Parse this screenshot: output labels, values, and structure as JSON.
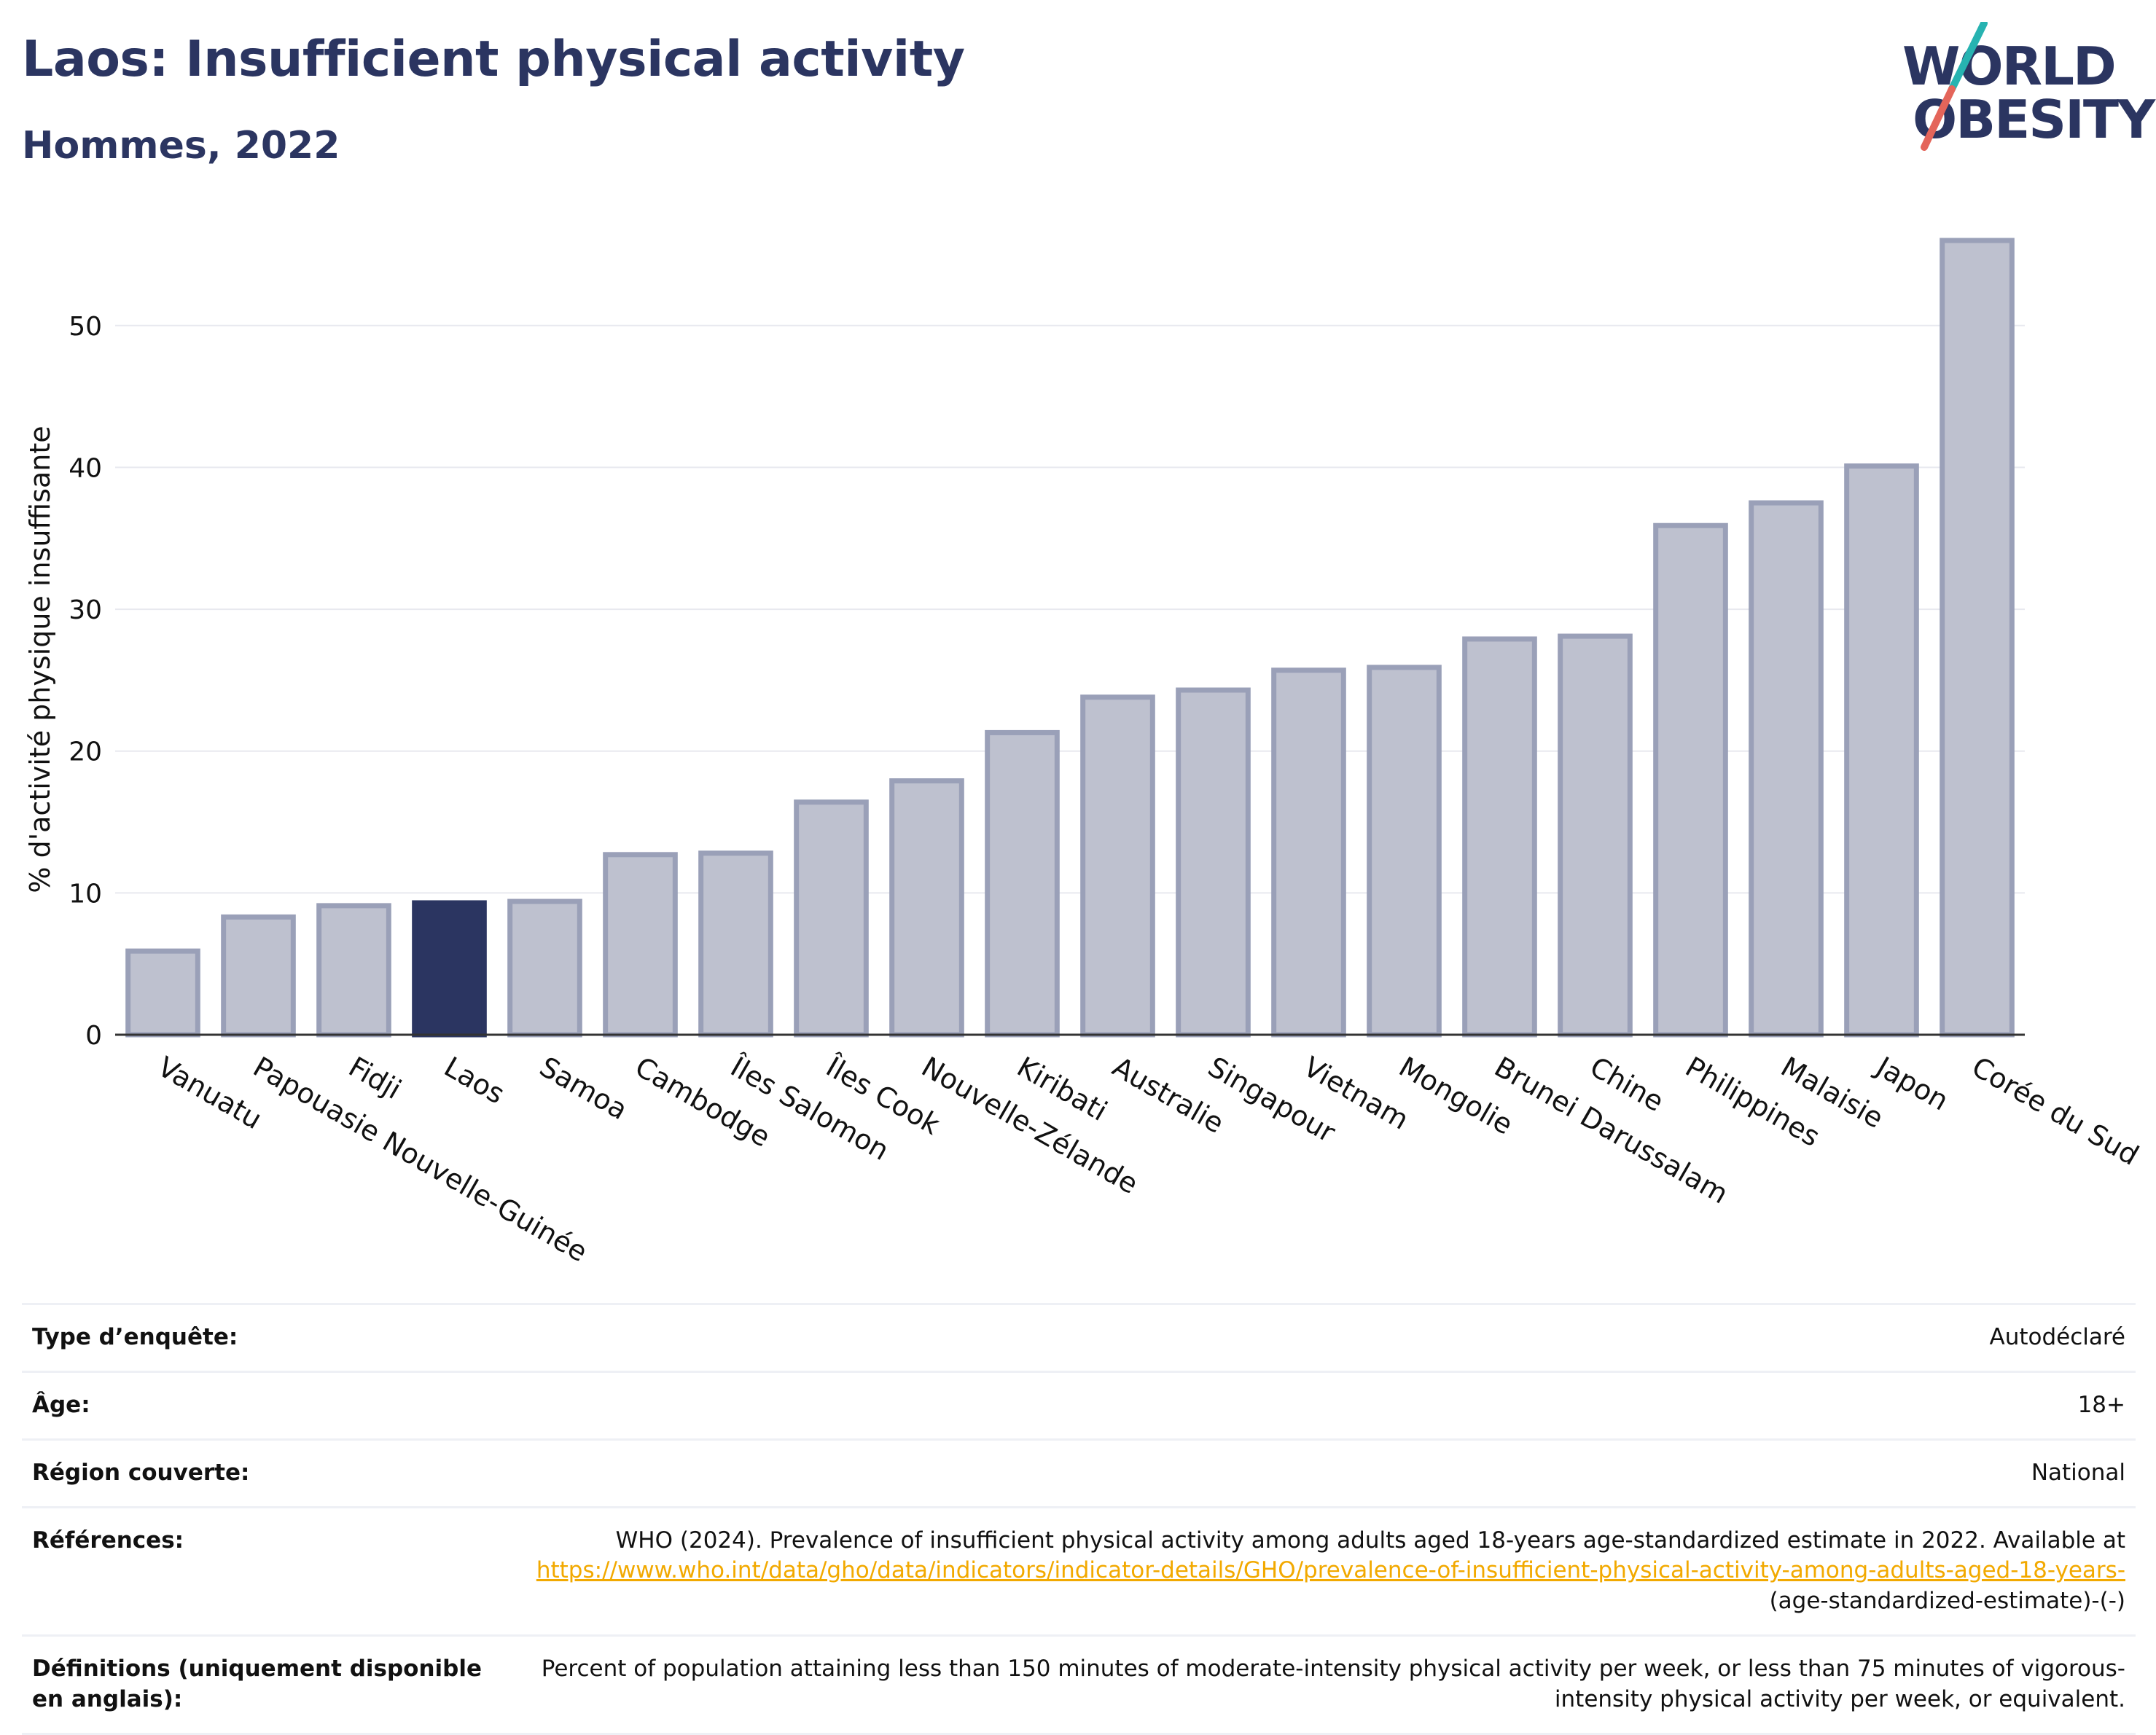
{
  "title": "Laos: Insufficient physical activity",
  "subtitle": "Hommes, 2022",
  "logo": {
    "line1": "WORLD",
    "line2": "OBESITY"
  },
  "colors": {
    "title": "#2b3561",
    "highlight_bar": "#2b3561",
    "bar_fill": "#bec1cf",
    "bar_stroke": "#9aa0b8",
    "link": "#f2a900",
    "logo_slash_teal": "#27b3b1",
    "logo_slash_red": "#e4655a"
  },
  "chart_data": {
    "type": "bar",
    "ylabel": "% d'activité physique insuffisante",
    "xlabel": "",
    "ylim": [
      0,
      56
    ],
    "yticks": [
      0,
      10,
      20,
      30,
      40,
      50
    ],
    "grid": true,
    "highlight": "Laos",
    "categories": [
      "Vanuatu",
      "Papouasie Nouvelle-Guinée",
      "Fidji",
      "Laos",
      "Samoa",
      "Cambodge",
      "Îles Salomon",
      "Îles Cook",
      "Nouvelle-Zélande",
      "Kiribati",
      "Australie",
      "Singapour",
      "Vietnam",
      "Mongolie",
      "Brunei Darussalam",
      "Chine",
      "Philippines",
      "Malaisie",
      "Japon",
      "Corée du Sud"
    ],
    "values": [
      5.9,
      8.3,
      9.1,
      9.3,
      9.4,
      12.7,
      12.8,
      16.4,
      17.9,
      21.3,
      23.8,
      24.3,
      25.7,
      25.9,
      27.9,
      28.1,
      35.9,
      37.5,
      40.1,
      56.0
    ]
  },
  "info": {
    "survey_label": "Type d’enquête:",
    "survey_value": "Autodéclaré",
    "age_label": "Âge:",
    "age_value": "18+",
    "region_label": "Région couverte:",
    "region_value": "National",
    "ref_label": "Références:",
    "ref_text": "WHO (2024). Prevalence of insufficient physical activity among adults aged 18-years age-standardized estimate in 2022. Available at",
    "ref_link": "https://www.who.int/data/gho/data/indicators/indicator-details/GHO/prevalence-of-insufficient-physical-activity-among-adults-aged-18-years-",
    "ref_tail": "(age-standardized-estimate)-(-)",
    "def_label": "Définitions (uniquement disponible en anglais):",
    "def_value": "Percent of population attaining less than 150 minutes of moderate-intensity physical activity per week, or less than 75 minutes of vigorous-intensity physical activity per week, or equivalent."
  }
}
